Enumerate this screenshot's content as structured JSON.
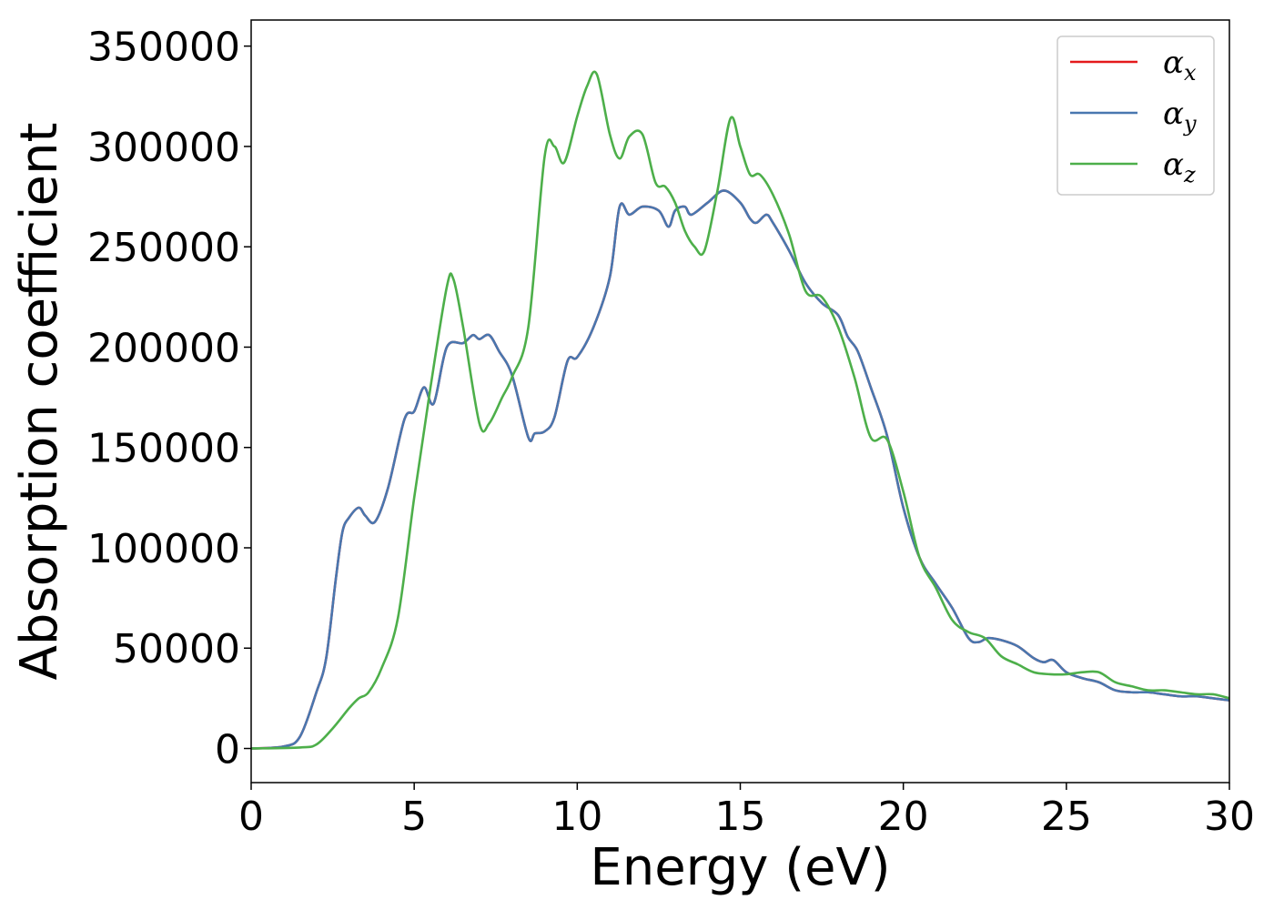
{
  "chart_data": {
    "type": "line",
    "xlabel": "Energy (eV)",
    "ylabel": "Absorption coefficient",
    "xlim": [
      0,
      30
    ],
    "ylim": [
      -17000,
      363000
    ],
    "xticks": [
      0,
      5,
      10,
      15,
      20,
      25,
      30
    ],
    "xtick_labels": [
      "0",
      "5",
      "10",
      "15",
      "20",
      "25",
      "30"
    ],
    "yticks": [
      0,
      50000,
      100000,
      150000,
      200000,
      250000,
      300000,
      350000
    ],
    "ytick_labels": [
      "0",
      "50000",
      "100000",
      "150000",
      "200000",
      "250000",
      "300000",
      "350000"
    ],
    "grid": false,
    "legend_position": "top-right",
    "series": [
      {
        "name": "α",
        "subscript": "x",
        "color": "#e41a1c",
        "x": [
          0,
          1,
          1.5,
          2.0,
          2.3,
          2.6,
          2.8,
          3.0,
          3.3,
          3.5,
          3.8,
          4.2,
          4.7,
          5.0,
          5.3,
          5.6,
          6.0,
          6.5,
          6.8,
          7.0,
          7.3,
          7.6,
          8.0,
          8.5,
          8.7,
          9.0,
          9.3,
          9.7,
          10.0,
          10.5,
          11.0,
          11.3,
          11.6,
          12.0,
          12.5,
          12.8,
          13.0,
          13.3,
          13.5,
          14.0,
          14.5,
          15.0,
          15.3,
          15.5,
          15.8,
          16.0,
          16.5,
          17.0,
          17.5,
          18.0,
          18.3,
          18.6,
          19.0,
          19.5,
          20.0,
          20.5,
          21.0,
          21.5,
          22.0,
          22.3,
          22.6,
          23.0,
          23.5,
          24.0,
          24.3,
          24.6,
          25.0,
          25.5,
          26.0,
          26.5,
          27.0,
          27.5,
          28.0,
          28.5,
          29.0,
          29.5,
          30.0
        ],
        "y": [
          0,
          1000,
          6000,
          28000,
          45000,
          85000,
          108000,
          115000,
          120000,
          116000,
          113000,
          130000,
          164000,
          168000,
          180000,
          172000,
          200000,
          202000,
          206000,
          204000,
          206000,
          198000,
          186000,
          155000,
          157000,
          158000,
          165000,
          193000,
          195000,
          210000,
          235000,
          270000,
          266000,
          270000,
          268000,
          260000,
          268000,
          270000,
          266000,
          272000,
          278000,
          272000,
          264000,
          262000,
          266000,
          262000,
          248000,
          232000,
          222000,
          216000,
          205000,
          198000,
          180000,
          156000,
          120000,
          95000,
          82000,
          70000,
          55000,
          53000,
          55000,
          54000,
          51000,
          45000,
          43000,
          44000,
          38000,
          35000,
          33000,
          29000,
          28000,
          28000,
          27000,
          26000,
          26000,
          25000,
          24000
        ]
      },
      {
        "name": "α",
        "subscript": "y",
        "color": "#4977af",
        "x": [
          0,
          1,
          1.5,
          2.0,
          2.3,
          2.6,
          2.8,
          3.0,
          3.3,
          3.5,
          3.8,
          4.2,
          4.7,
          5.0,
          5.3,
          5.6,
          6.0,
          6.5,
          6.8,
          7.0,
          7.3,
          7.6,
          8.0,
          8.5,
          8.7,
          9.0,
          9.3,
          9.7,
          10.0,
          10.5,
          11.0,
          11.3,
          11.6,
          12.0,
          12.5,
          12.8,
          13.0,
          13.3,
          13.5,
          14.0,
          14.5,
          15.0,
          15.3,
          15.5,
          15.8,
          16.0,
          16.5,
          17.0,
          17.5,
          18.0,
          18.3,
          18.6,
          19.0,
          19.5,
          20.0,
          20.5,
          21.0,
          21.5,
          22.0,
          22.3,
          22.6,
          23.0,
          23.5,
          24.0,
          24.3,
          24.6,
          25.0,
          25.5,
          26.0,
          26.5,
          27.0,
          27.5,
          28.0,
          28.5,
          29.0,
          29.5,
          30.0
        ],
        "y": [
          0,
          1000,
          6000,
          28000,
          45000,
          85000,
          108000,
          115000,
          120000,
          116000,
          113000,
          130000,
          164000,
          168000,
          180000,
          172000,
          200000,
          202000,
          206000,
          204000,
          206000,
          198000,
          186000,
          155000,
          157000,
          158000,
          165000,
          193000,
          195000,
          210000,
          235000,
          270000,
          266000,
          270000,
          268000,
          260000,
          268000,
          270000,
          266000,
          272000,
          278000,
          272000,
          264000,
          262000,
          266000,
          262000,
          248000,
          232000,
          222000,
          216000,
          205000,
          198000,
          180000,
          156000,
          120000,
          95000,
          82000,
          70000,
          55000,
          53000,
          55000,
          54000,
          51000,
          45000,
          43000,
          44000,
          38000,
          35000,
          33000,
          29000,
          28000,
          28000,
          27000,
          26000,
          26000,
          25000,
          24000
        ]
      },
      {
        "name": "α",
        "subscript": "z",
        "color": "#4daf4a",
        "x": [
          0,
          1.5,
          2.0,
          2.5,
          3.0,
          3.3,
          3.6,
          4.0,
          4.5,
          5.0,
          5.5,
          6.0,
          6.2,
          6.5,
          7.0,
          7.3,
          7.7,
          8.0,
          8.5,
          9.0,
          9.3,
          9.6,
          10.0,
          10.3,
          10.6,
          11.0,
          11.3,
          11.6,
          12.0,
          12.4,
          12.7,
          13.0,
          13.3,
          13.6,
          13.9,
          14.3,
          14.7,
          15.0,
          15.3,
          15.6,
          16.0,
          16.5,
          17.0,
          17.5,
          18.0,
          18.5,
          19.0,
          19.5,
          20.0,
          20.5,
          21.0,
          21.5,
          22.0,
          22.5,
          23.0,
          23.5,
          24.0,
          24.5,
          25.0,
          25.5,
          26.0,
          26.5,
          27.0,
          27.5,
          28.0,
          28.5,
          29.0,
          29.5,
          30.0
        ],
        "y": [
          0,
          500,
          2000,
          10000,
          20000,
          25000,
          28000,
          40000,
          65000,
          125000,
          180000,
          230000,
          234000,
          210000,
          162000,
          162000,
          175000,
          185000,
          210000,
          295000,
          300000,
          292000,
          315000,
          330000,
          336000,
          306000,
          294000,
          305000,
          306000,
          282000,
          280000,
          272000,
          258000,
          250000,
          248000,
          278000,
          314000,
          300000,
          286000,
          286000,
          276000,
          256000,
          228000,
          225000,
          210000,
          185000,
          155000,
          154000,
          128000,
          95000,
          80000,
          64000,
          58000,
          55000,
          46000,
          42000,
          38000,
          37000,
          37000,
          38000,
          38000,
          33000,
          31000,
          29000,
          29000,
          28000,
          27000,
          27000,
          25000
        ]
      }
    ]
  }
}
